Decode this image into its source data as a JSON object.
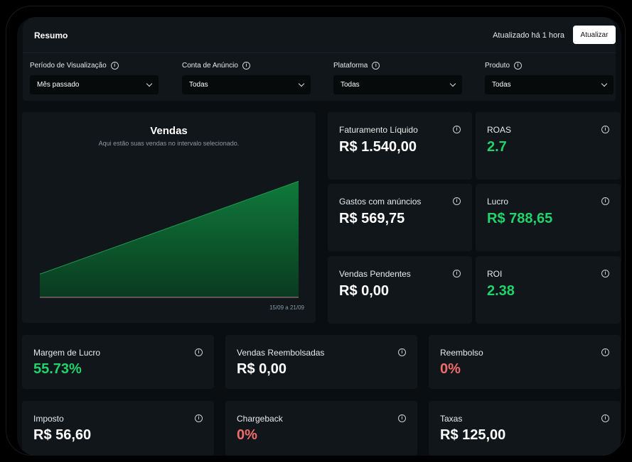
{
  "header": {
    "title": "Resumo",
    "updated_text": "Atualizado há 1 hora",
    "update_button": "Atualizar"
  },
  "filters": [
    {
      "label": "Período de Visualização",
      "value": "Mês passado"
    },
    {
      "label": "Conta de Anúncio",
      "value": "Todas"
    },
    {
      "label": "Plataforma",
      "value": "Todas"
    },
    {
      "label": "Produto",
      "value": "Todas"
    }
  ],
  "chart": {
    "title": "Vendas",
    "subtitle": "Aqui estão suas vendas no intervalo selecionado.",
    "date_range": "15/09 a 21/09"
  },
  "chart_data": {
    "type": "area",
    "title": "Vendas",
    "xlabel": "",
    "ylabel": "",
    "x": [
      "15/09",
      "21/09"
    ],
    "values": [
      1,
      5
    ],
    "ylim": [
      0,
      5.5
    ],
    "color": "#0f7a3a",
    "grid": false
  },
  "metrics": [
    {
      "label": "Faturamento Líquido",
      "value": "R$ 1.540,00",
      "tone": "white"
    },
    {
      "label": "ROAS",
      "value": "2.7",
      "tone": "green"
    },
    {
      "label": "Gastos com anúncios",
      "value": "R$ 569,75",
      "tone": "white"
    },
    {
      "label": "Lucro",
      "value": "R$ 788,65",
      "tone": "green"
    },
    {
      "label": "Vendas Pendentes",
      "value": "R$ 0,00",
      "tone": "white"
    },
    {
      "label": "ROI",
      "value": "2.38",
      "tone": "green"
    },
    {
      "label": "Margem de Lucro",
      "value": "55.73%",
      "tone": "green"
    },
    {
      "label": "Vendas Reembolsadas",
      "value": "R$ 0,00",
      "tone": "white"
    },
    {
      "label": "Reembolso",
      "value": "0%",
      "tone": "red"
    },
    {
      "label": "Imposto",
      "value": "R$ 56,60",
      "tone": "white"
    },
    {
      "label": "Chargeback",
      "value": "0%",
      "tone": "red"
    },
    {
      "label": "Taxas",
      "value": "R$ 125,00",
      "tone": "white"
    }
  ],
  "colors": {
    "positive": "#22d36b",
    "negative": "#f26b6b",
    "panel": "#10161a"
  },
  "icons": {
    "info": "info-circle-icon",
    "dropdown": "chevron-down-icon"
  }
}
